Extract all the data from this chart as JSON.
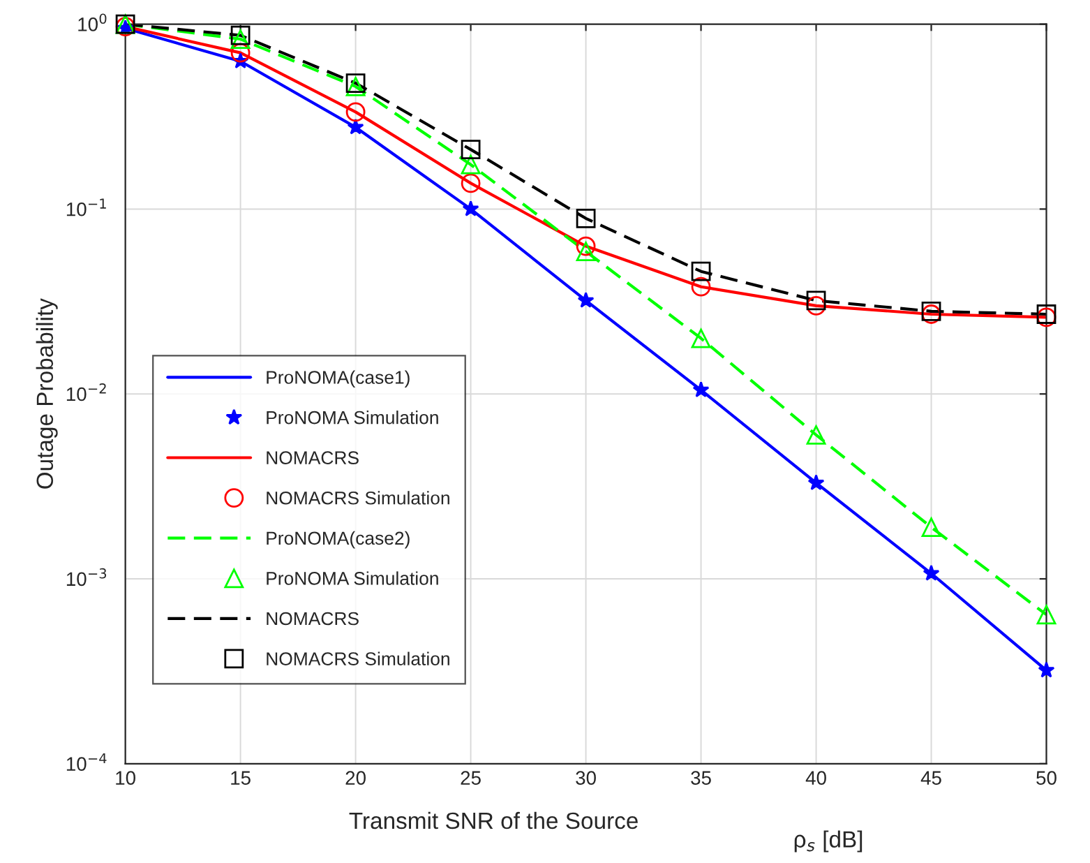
{
  "chart_data": {
    "type": "line",
    "xlabel": "Transmit SNR of the Source",
    "ylabel": "Outage Probability",
    "annotations": [
      "ρ$_{s}$ [dB]"
    ],
    "x": [
      10,
      15,
      20,
      25,
      30,
      35,
      40,
      45,
      50
    ],
    "series": [
      {
        "name": "ProNOMA(case1)",
        "type": "line",
        "color": "#0000ff",
        "line_style": "solid",
        "values": [
          0.95,
          0.63,
          0.277,
          0.1,
          0.032,
          0.0105,
          0.0033,
          0.00107,
          0.00032
        ]
      },
      {
        "name": "ProNOMA Simulation",
        "type": "scatter",
        "color": "#0000ff",
        "marker": "star",
        "values": [
          0.95,
          0.63,
          0.277,
          0.1,
          0.032,
          0.0105,
          0.0033,
          0.00107,
          0.00032
        ]
      },
      {
        "name": "NOMACRS",
        "type": "line",
        "color": "#ff0000",
        "line_style": "solid",
        "values": [
          0.97,
          0.7,
          0.335,
          0.138,
          0.063,
          0.038,
          0.03,
          0.027,
          0.026
        ]
      },
      {
        "name": "NOMACRS Simulation",
        "type": "scatter",
        "color": "#ff0000",
        "marker": "circle",
        "values": [
          0.97,
          0.7,
          0.335,
          0.138,
          0.063,
          0.038,
          0.03,
          0.027,
          0.026
        ]
      },
      {
        "name": "ProNOMA(case2)",
        "type": "line",
        "color": "#00ff00",
        "line_style": "dashed",
        "values": [
          1.0,
          0.83,
          0.46,
          0.174,
          0.059,
          0.02,
          0.006,
          0.0019,
          0.00064
        ]
      },
      {
        "name": "ProNOMA Simulation",
        "type": "scatter",
        "color": "#00ff00",
        "marker": "triangle",
        "values": [
          1.0,
          0.83,
          0.46,
          0.174,
          0.059,
          0.02,
          0.006,
          0.0019,
          0.00064
        ]
      },
      {
        "name": "NOMACRS",
        "type": "line",
        "color": "#000000",
        "line_style": "dashed",
        "values": [
          1.0,
          0.87,
          0.48,
          0.21,
          0.089,
          0.046,
          0.032,
          0.028,
          0.027
        ]
      },
      {
        "name": "NOMACRS Simulation",
        "type": "scatter",
        "color": "#000000",
        "marker": "square",
        "values": [
          1.0,
          0.87,
          0.48,
          0.21,
          0.089,
          0.046,
          0.032,
          0.028,
          0.027
        ]
      }
    ],
    "log": "y",
    "xlim": [
      10,
      50
    ],
    "xticks": [
      10,
      15,
      20,
      25,
      30,
      35,
      40,
      45,
      50
    ],
    "ylim": [
      0.0001,
      1
    ],
    "yticks": [
      {
        "value": 0.0001,
        "label": "10$^{−4}$"
      },
      {
        "value": 0.001,
        "label": "10$^{−3}$"
      },
      {
        "value": 0.01,
        "label": "10$^{−2}$"
      },
      {
        "value": 0.1,
        "label": "10$^{−1}$"
      },
      {
        "value": 1,
        "label": "10$^{0}$"
      }
    ],
    "grid": true,
    "legend": "left"
  }
}
